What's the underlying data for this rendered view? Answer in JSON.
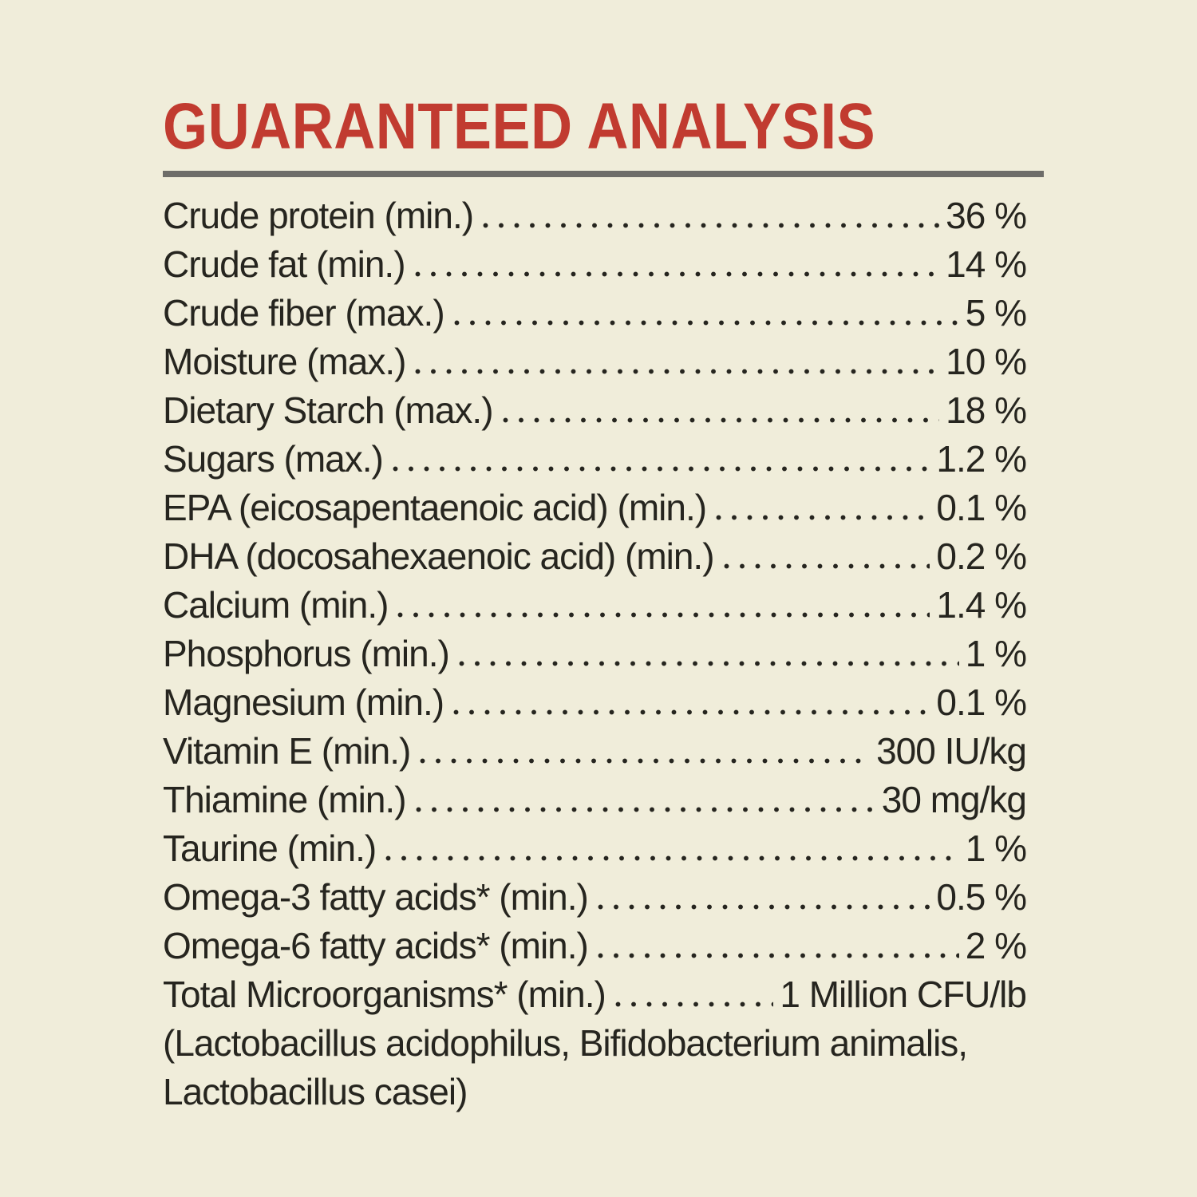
{
  "colors": {
    "background": "#f0edda",
    "title": "#c13b30",
    "rule": "#6e6d69",
    "text": "#26251f"
  },
  "header": {
    "title": "GUARANTEED ANALYSIS"
  },
  "table": {
    "rows": [
      {
        "label": "Crude protein (min.)",
        "value": "36 %"
      },
      {
        "label": "Crude fat (min.)",
        "value": "14 %"
      },
      {
        "label": "Crude fiber (max.)",
        "value": "5 %"
      },
      {
        "label": "Moisture (max.)",
        "value": "10 %"
      },
      {
        "label": "Dietary Starch (max.)",
        "value": "18 %"
      },
      {
        "label": "Sugars (max.)",
        "value": "1.2 %"
      },
      {
        "label": "EPA (eicosapentaenoic acid) (min.)",
        "value": "0.1 %"
      },
      {
        "label": "DHA (docosahexaenoic acid) (min.)",
        "value": "0.2 %"
      },
      {
        "label": "Calcium (min.)",
        "value": "1.4 %"
      },
      {
        "label": "Phosphorus (min.)",
        "value": "1 %"
      },
      {
        "label": "Magnesium (min.)",
        "value": "0.1 %"
      },
      {
        "label": "Vitamin E (min.)",
        "value": "300 IU/kg"
      },
      {
        "label": "Thiamine (min.)",
        "value": "30 mg/kg"
      },
      {
        "label": "Taurine (min.)",
        "value": "1 %"
      },
      {
        "label": "Omega-3 fatty acids* (min.)",
        "value": "0.5 %"
      },
      {
        "label": "Omega-6 fatty acids* (min.)",
        "value": "2 %"
      },
      {
        "label": "Total Microorganisms* (min.)",
        "value": "1 Million CFU/lb"
      }
    ],
    "footnote_lines": [
      "(Lactobacillus acidophilus, Bifidobacterium animalis,",
      "Lactobacillus casei)"
    ]
  }
}
